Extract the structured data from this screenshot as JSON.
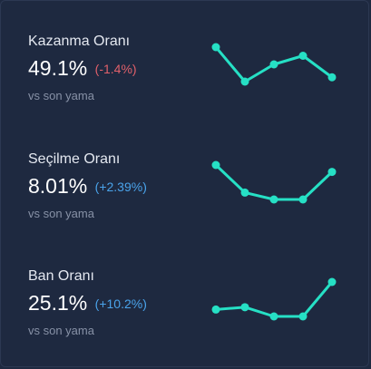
{
  "stats": [
    {
      "label": "Kazanma Oranı",
      "value": "49.1%",
      "delta": "(-1.4%)",
      "trend": "negative",
      "caption": "vs son yama",
      "sparkline": [
        49.9,
        49.1,
        49.5,
        49.7,
        49.2
      ]
    },
    {
      "label": "Seçilme Oranı",
      "value": "8.01%",
      "delta": "(+2.39%)",
      "trend": "positive",
      "caption": "vs son yama",
      "sparkline": [
        8.6,
        8.2,
        8.1,
        8.1,
        8.5
      ]
    },
    {
      "label": "Ban Oranı",
      "value": "25.1%",
      "delta": "(+10.2%)",
      "trend": "positive",
      "caption": "vs son yama",
      "sparkline": [
        24.7,
        24.8,
        24.4,
        24.4,
        25.9
      ]
    }
  ],
  "colors": {
    "background": "#1e2940",
    "sparkline": "#26e0c5",
    "negative": "#e0606a",
    "positive": "#4aa3ea"
  }
}
